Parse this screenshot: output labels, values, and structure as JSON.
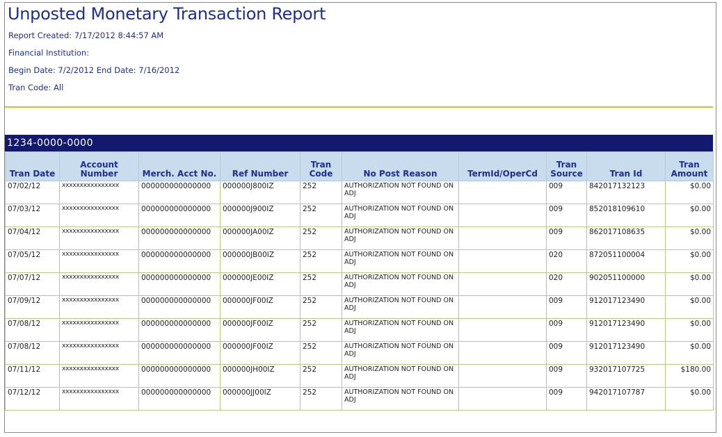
{
  "report": {
    "title": "Unposted Monetary Transaction Report",
    "created": "Report Created: 7/17/2012 8:44:57 AM",
    "institution": "Financial Institution:",
    "dates": "Begin Date: 7/2/2012 End Date: 7/16/2012",
    "tran_code": "Tran Code: All",
    "group": "1234-0000-0000"
  },
  "columns": {
    "tran_date": "Tran Date",
    "account_number": "Account Number",
    "merch_acct": "Merch. Acct No.",
    "ref_number": "Ref Number",
    "tran_code": "Tran Code",
    "no_post_reason": "No Post Reason",
    "termid": "TermId/OperCd",
    "tran_source": "Tran Source",
    "tran_id": "Tran Id",
    "tran_amount": "Tran Amount"
  },
  "rows": [
    {
      "date": "07/02/12",
      "acct": "xxxxxxxxxxxxxxxx",
      "merch": "000000000000000",
      "ref": "000000J800IZ",
      "code": "252",
      "reason": "AUTHORIZATION NOT FOUND ON ADJ",
      "term": "",
      "source": "009",
      "id": "842017132123",
      "amount": "$0.00"
    },
    {
      "date": "07/03/12",
      "acct": "xxxxxxxxxxxxxxxx",
      "merch": "000000000000000",
      "ref": "000000J900IZ",
      "code": "252",
      "reason": "AUTHORIZATION NOT FOUND ON ADJ",
      "term": "",
      "source": "009",
      "id": "852018109610",
      "amount": "$0.00"
    },
    {
      "date": "07/04/12",
      "acct": "xxxxxxxxxxxxxxxx",
      "merch": "000000000000000",
      "ref": "000000JA00IZ",
      "code": "252",
      "reason": "AUTHORIZATION NOT FOUND ON ADJ",
      "term": "",
      "source": "009",
      "id": "862017108635",
      "amount": "$0.00"
    },
    {
      "date": "07/05/12",
      "acct": "xxxxxxxxxxxxxxxx",
      "merch": "000000000000000",
      "ref": "000000JB00IZ",
      "code": "252",
      "reason": "AUTHORIZATION NOT FOUND ON ADJ",
      "term": "",
      "source": "020",
      "id": "872051100004",
      "amount": "$0.00"
    },
    {
      "date": "07/07/12",
      "acct": "xxxxxxxxxxxxxxxx",
      "merch": "000000000000000",
      "ref": "000000JE00IZ",
      "code": "252",
      "reason": "AUTHORIZATION NOT FOUND ON ADJ",
      "term": "",
      "source": "020",
      "id": "902051100000",
      "amount": "$0.00"
    },
    {
      "date": "07/09/12",
      "acct": "xxxxxxxxxxxxxxxx",
      "merch": "000000000000000",
      "ref": "000000JF00IZ",
      "code": "252",
      "reason": "AUTHORIZATION NOT FOUND ON ADJ",
      "term": "",
      "source": "009",
      "id": "912017123490",
      "amount": "$0.00"
    },
    {
      "date": "07/08/12",
      "acct": "xxxxxxxxxxxxxxxx",
      "merch": "000000000000000",
      "ref": "000000JF00IZ",
      "code": "252",
      "reason": "AUTHORIZATION NOT FOUND ON ADJ",
      "term": "",
      "source": "009",
      "id": "912017123490",
      "amount": "$0.00"
    },
    {
      "date": "07/08/12",
      "acct": "xxxxxxxxxxxxxxxx",
      "merch": "000000000000000",
      "ref": "000000JF00IZ",
      "code": "252",
      "reason": "AUTHORIZATION NOT FOUND ON ADJ",
      "term": "",
      "source": "009",
      "id": "912017123490",
      "amount": "$0.00"
    },
    {
      "date": "07/11/12",
      "acct": "xxxxxxxxxxxxxxxx",
      "merch": "000000000000000",
      "ref": "000000JH00IZ",
      "code": "252",
      "reason": "AUTHORIZATION NOT FOUND ON ADJ",
      "term": "",
      "source": "009",
      "id": "932017107725",
      "amount": "$180.00"
    },
    {
      "date": "07/12/12",
      "acct": "xxxxxxxxxxxxxxxx",
      "merch": "000000000000000",
      "ref": "000000JJ00IZ",
      "code": "252",
      "reason": "AUTHORIZATION NOT FOUND ON ADJ",
      "term": "",
      "source": "009",
      "id": "942017107787",
      "amount": "$0.00"
    }
  ],
  "colors": {
    "title": "#1d2f8f",
    "rule": "#f0b41c",
    "group_bar": "#131a6e",
    "header_bg": "#c9dcee"
  }
}
